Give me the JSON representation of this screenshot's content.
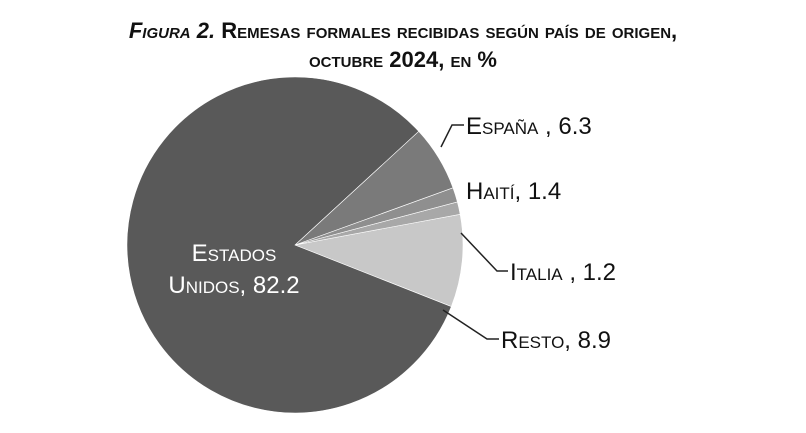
{
  "title": {
    "prefix": "Figura 2.",
    "line1": "Remesas formales recibidas según país de origen,",
    "line2": "octubre 2024, en %"
  },
  "chart_data": {
    "type": "pie",
    "title": "Figura 2. Remesas formales recibidas según país de origen, octubre 2024, en %",
    "slices": [
      {
        "label": "Estados Unidos",
        "value": 82.2,
        "color": "#595959"
      },
      {
        "label": "España",
        "value": 6.3,
        "color": "#7a7a7a"
      },
      {
        "label": "Haití",
        "value": 1.4,
        "color": "#8f8f8f"
      },
      {
        "label": "Italia",
        "value": 1.2,
        "color": "#a8a8a8"
      },
      {
        "label": "Resto",
        "value": 8.9,
        "color": "#c8c8c8"
      }
    ],
    "labels": {
      "estados_unidos_l1": "Estados",
      "estados_unidos_l2": "Unidos, 82.2",
      "espana": "España , 6.3",
      "haiti": "Haití, 1.4",
      "italia": "Italia , 1.2",
      "resto": "Resto, 8.9"
    }
  }
}
